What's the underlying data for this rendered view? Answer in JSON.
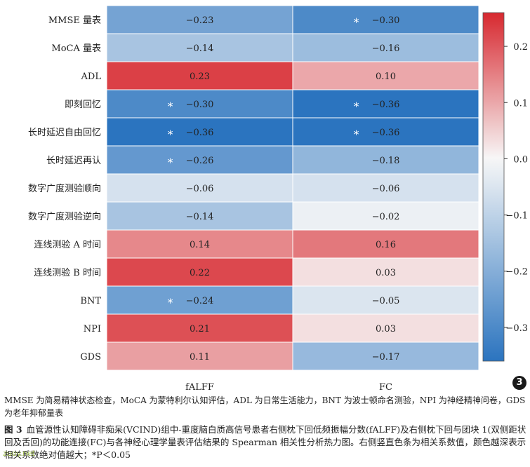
{
  "chart_data": {
    "type": "heatmap",
    "rows": [
      "MMSE 量表",
      "MoCA 量表",
      "ADL",
      "即刻回忆",
      "长时延迟自由回忆",
      "长时延迟再认",
      "数字广度测验顺向",
      "数字广度测验逆向",
      "连线测验 A 时间",
      "连线测验 B 时间",
      "BNT",
      "NPI",
      "GDS"
    ],
    "columns": [
      "fALFF",
      "FC"
    ],
    "values": [
      [
        -0.23,
        -0.3
      ],
      [
        -0.14,
        -0.16
      ],
      [
        0.23,
        0.1
      ],
      [
        -0.3,
        -0.36
      ],
      [
        -0.36,
        -0.36
      ],
      [
        -0.26,
        -0.18
      ],
      [
        -0.06,
        -0.06
      ],
      [
        -0.14,
        -0.02
      ],
      [
        0.14,
        0.16
      ],
      [
        0.22,
        0.03
      ],
      [
        -0.24,
        -0.05
      ],
      [
        0.21,
        0.03
      ],
      [
        0.11,
        -0.17
      ]
    ],
    "labels": [
      [
        "−0.23",
        "−0.30"
      ],
      [
        "−0.14",
        "−0.16"
      ],
      [
        "0.23",
        "0.10"
      ],
      [
        "−0.30",
        "−0.36"
      ],
      [
        "−0.36",
        "−0.36"
      ],
      [
        "−0.26",
        "−0.18"
      ],
      [
        "−0.06",
        "−0.06"
      ],
      [
        "−0.14",
        "−0.02"
      ],
      [
        "0.14",
        "0.16"
      ],
      [
        "0.22",
        "0.03"
      ],
      [
        "−0.24",
        "−0.05"
      ],
      [
        "0.21",
        "0.03"
      ],
      [
        "0.11",
        "−0.17"
      ]
    ],
    "significant": [
      [
        false,
        true
      ],
      [
        false,
        false
      ],
      [
        false,
        false
      ],
      [
        true,
        true
      ],
      [
        true,
        true
      ],
      [
        true,
        false
      ],
      [
        false,
        false
      ],
      [
        false,
        false
      ],
      [
        false,
        false
      ],
      [
        false,
        false
      ],
      [
        true,
        false
      ],
      [
        false,
        false
      ],
      [
        false,
        false
      ]
    ],
    "significance_marker": "*",
    "colorbar": {
      "min": -0.36,
      "max": 0.26,
      "ticks": [
        0.2,
        0.1,
        0.0,
        -0.1,
        -0.2,
        -0.3
      ],
      "tick_labels": [
        "0.2",
        "0.1",
        "0.0",
        "−0.1",
        "−0.2",
        "−0.3"
      ],
      "colors": {
        "negative": "#2b74bf",
        "neutral": "#f7f7f7",
        "positive": "#d7282f"
      }
    }
  },
  "figure_badge": "3",
  "notes": "MMSE 为简易精神状态检查，MoCA 为蒙特利尔认知评估，ADL 为日常生活能力，BNT 为波士顿命名测验，NPI 为神经精神问卷，GDS 为老年抑郁量表",
  "caption": {
    "label": "图 3",
    "text": "血管源性认知障碍非痴呆(VCIND)组中-重度脑白质高信号患者右侧枕下回低频振幅分数(fALFF)及右侧枕下回与团块 1(双侧距状回及舌回)的功能连接(FC)与各神经心理学量表评估结果的 Spearman 相关性分析热力图。右侧竖直色条为相关系数值，颜色越深表示相关系数绝对值越大；*P＜0.05"
  },
  "watermark": "zuoy.net"
}
